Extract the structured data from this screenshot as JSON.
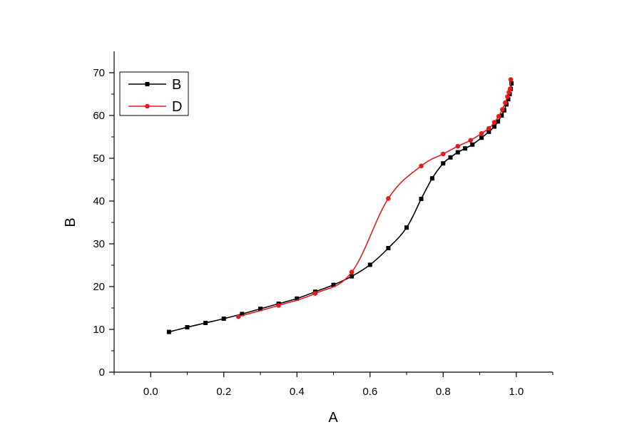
{
  "chart_data": {
    "type": "line",
    "xlabel": "A",
    "ylabel": "B",
    "xlim": [
      -0.1,
      1.1
    ],
    "ylim": [
      0,
      75
    ],
    "xticks": [
      "0.0",
      "0.2",
      "0.4",
      "0.6",
      "0.8",
      "1.0"
    ],
    "yticks": [
      "0",
      "10",
      "20",
      "30",
      "40",
      "50",
      "60",
      "70"
    ],
    "grid": false,
    "legend_position": "top-left",
    "series": [
      {
        "name": "B",
        "color": "#000000",
        "marker": "square",
        "points": [
          [
            0.05,
            9.4
          ],
          [
            0.1,
            10.5
          ],
          [
            0.15,
            11.5
          ],
          [
            0.2,
            12.5
          ],
          [
            0.25,
            13.6
          ],
          [
            0.3,
            14.8
          ],
          [
            0.35,
            16.0
          ],
          [
            0.4,
            17.2
          ],
          [
            0.45,
            18.8
          ],
          [
            0.5,
            20.4
          ],
          [
            0.55,
            22.4
          ],
          [
            0.6,
            25.1
          ],
          [
            0.65,
            29.0
          ],
          [
            0.7,
            33.8
          ],
          [
            0.74,
            40.5
          ],
          [
            0.77,
            45.3
          ],
          [
            0.8,
            48.8
          ],
          [
            0.82,
            50.2
          ],
          [
            0.84,
            51.4
          ],
          [
            0.86,
            52.3
          ],
          [
            0.88,
            53.2
          ],
          [
            0.905,
            54.8
          ],
          [
            0.925,
            56.2
          ],
          [
            0.94,
            57.4
          ],
          [
            0.95,
            58.6
          ],
          [
            0.96,
            60.0
          ],
          [
            0.967,
            61.2
          ],
          [
            0.973,
            62.6
          ],
          [
            0.978,
            63.8
          ],
          [
            0.982,
            65.0
          ],
          [
            0.985,
            66.2
          ],
          [
            0.987,
            67.5
          ]
        ]
      },
      {
        "name": "D",
        "color": "#e8191c",
        "marker": "circle",
        "points": [
          [
            0.24,
            13.0
          ],
          [
            0.35,
            15.6
          ],
          [
            0.45,
            18.4
          ],
          [
            0.55,
            23.4
          ],
          [
            0.65,
            40.6
          ],
          [
            0.74,
            48.2
          ],
          [
            0.8,
            51.0
          ],
          [
            0.84,
            52.8
          ],
          [
            0.875,
            54.2
          ],
          [
            0.905,
            55.8
          ],
          [
            0.925,
            57.0
          ],
          [
            0.94,
            58.4
          ],
          [
            0.952,
            59.8
          ],
          [
            0.962,
            61.4
          ],
          [
            0.97,
            63.0
          ],
          [
            0.976,
            64.4
          ],
          [
            0.98,
            65.4
          ],
          [
            0.983,
            66.2
          ],
          [
            0.985,
            68.4
          ]
        ]
      }
    ]
  }
}
